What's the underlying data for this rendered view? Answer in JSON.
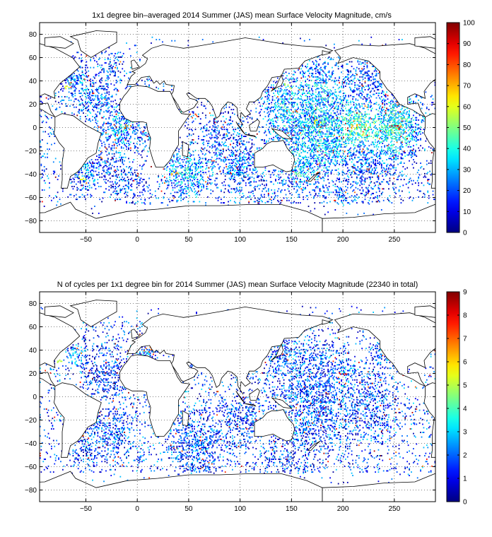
{
  "chart_data": [
    {
      "type": "heatmap",
      "title": "1x1 degree bin–averaged 2014 Summer (JAS) mean Surface Velocity Magnitude, cm/s",
      "x_ticks": [
        -50,
        0,
        50,
        100,
        150,
        200,
        250
      ],
      "y_ticks": [
        80,
        60,
        40,
        20,
        0,
        -20,
        -40,
        -60,
        -80
      ],
      "xlim": [
        -95,
        290
      ],
      "ylim": [
        -90,
        90
      ],
      "grid": true,
      "grid_style": "dotted",
      "colorbar": {
        "ticks": [
          0,
          10,
          20,
          30,
          40,
          50,
          60,
          70,
          80,
          90,
          100
        ],
        "range": [
          0,
          100
        ],
        "colormap": "jet",
        "placement": "right"
      },
      "background_map": "world coastlines",
      "data_coverage": [
        {
          "lon": 175,
          "lat": 5,
          "value": 65
        },
        {
          "lon": 250,
          "lat": 0,
          "value": 90
        },
        {
          "lon": 210,
          "lat": 0,
          "value": 70
        },
        {
          "lon": -10,
          "lat": 0,
          "value": 75
        },
        {
          "lon": 35,
          "lat": -40,
          "value": 70
        },
        {
          "lon": -55,
          "lat": -45,
          "value": 60
        },
        {
          "lon": 145,
          "lat": 35,
          "value": 55
        },
        {
          "lon": -70,
          "lat": 35,
          "value": 60
        },
        {
          "lon": 55,
          "lat": 10,
          "value": 80
        },
        {
          "lon": 155,
          "lat": -40,
          "value": 50
        },
        {
          "lon": 100,
          "lat": -40,
          "value": 30
        },
        {
          "lon": 200,
          "lat": -30,
          "value": 20
        },
        {
          "lon": -30,
          "lat": 20,
          "value": 20
        },
        {
          "lon": 180,
          "lat": 40,
          "value": 25
        }
      ]
    },
    {
      "type": "heatmap",
      "title": "N of cycles per 1x1 degree bin for 2014 Summer (JAS) mean Surface Velocity Magnitude (22340 in total)",
      "x_ticks": [
        -50,
        0,
        50,
        100,
        150,
        200,
        250
      ],
      "y_ticks": [
        80,
        60,
        40,
        20,
        0,
        -20,
        -40,
        -60,
        -80
      ],
      "xlim": [
        -95,
        290
      ],
      "ylim": [
        -90,
        90
      ],
      "grid": true,
      "grid_style": "dotted",
      "colorbar": {
        "ticks": [
          0,
          1,
          2,
          3,
          4,
          5,
          6,
          7,
          8,
          9
        ],
        "range": [
          0,
          9
        ],
        "colormap": "jet",
        "placement": "right"
      },
      "background_map": "world coastlines",
      "data_coverage": [
        {
          "lon": 200,
          "lat": 20,
          "value": 8
        },
        {
          "lon": 140,
          "lat": 38,
          "value": 8
        },
        {
          "lon": 10,
          "lat": 40,
          "value": 7
        },
        {
          "lon": -75,
          "lat": 30,
          "value": 5
        },
        {
          "lon": 240,
          "lat": 45,
          "value": 6
        },
        {
          "lon": 150,
          "lat": 0,
          "value": 3
        },
        {
          "lon": 60,
          "lat": -40,
          "value": 2
        },
        {
          "lon": 175,
          "lat": -20,
          "value": 2
        },
        {
          "lon": -20,
          "lat": -20,
          "value": 2
        },
        {
          "lon": 230,
          "lat": 0,
          "value": 2
        }
      ]
    }
  ]
}
